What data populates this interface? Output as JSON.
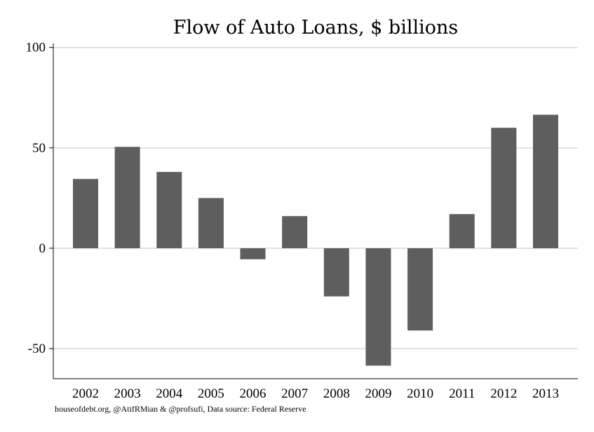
{
  "chart_data": {
    "type": "bar",
    "title": "Flow of Auto Loans, $ billions",
    "xlabel": "",
    "ylabel": "",
    "categories": [
      "2002",
      "2003",
      "2004",
      "2005",
      "2006",
      "2007",
      "2008",
      "2009",
      "2010",
      "2011",
      "2012",
      "2013"
    ],
    "values": [
      34.5,
      50.5,
      38,
      25,
      -5.5,
      16,
      -24,
      -58.5,
      -41,
      17,
      60,
      66.5
    ],
    "ylim": [
      -65,
      102
    ],
    "yticks": [
      100,
      50,
      0,
      -50
    ],
    "ytick_labels": [
      "100",
      "50",
      "0",
      "-50"
    ],
    "grid": true,
    "legend": "none",
    "bar_color": "#5e5e5e"
  },
  "source_note": "houseofdebt.org, @AtifRMian & @profsufi, Data source: Federal Reserve"
}
